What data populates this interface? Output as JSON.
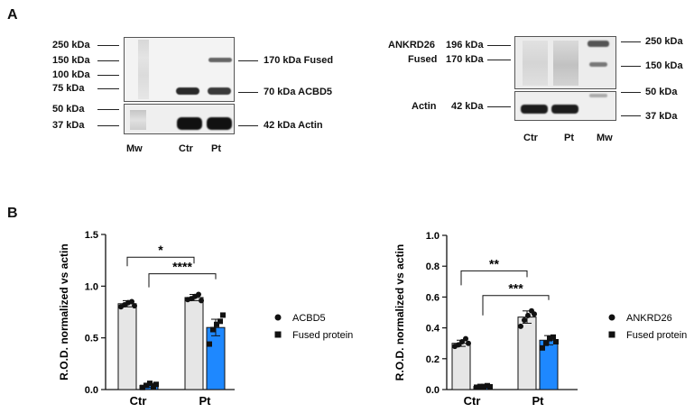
{
  "panels": {
    "a": "A",
    "b": "B"
  },
  "blot_left": {
    "mw_markers": [
      "250 kDa",
      "150 kDa",
      "100 kDa",
      "75 kDa",
      "50 kDa",
      "37 kDa"
    ],
    "right_labels": [
      "170 kDa  Fused",
      "70 kDa  ACBD5",
      "42 kDa  Actin"
    ],
    "lanes": [
      "Mw",
      "Ctr",
      "Pt"
    ]
  },
  "blot_right": {
    "left_labels": [
      {
        "name": "ANKRD26",
        "size": "196 kDa"
      },
      {
        "name": "Fused",
        "size": "170 kDa"
      },
      {
        "name": "Actin",
        "size": "42 kDa"
      }
    ],
    "mw_markers": [
      "250 kDa",
      "150 kDa",
      "50 kDa",
      "37 kDa"
    ],
    "lanes": [
      "Ctr",
      "Pt",
      "Mw"
    ]
  },
  "colors": {
    "control_bar": "#e6e6e6",
    "fused_bar": "#1e88ff",
    "dots": "#111111"
  },
  "chart_data": [
    {
      "type": "bar",
      "ylabel": "R.O.D. normalized vs actin",
      "categories": [
        "Ctr",
        "Pt"
      ],
      "ylim": [
        0,
        1.5
      ],
      "yticks": [
        "0.0",
        "0.5",
        "1.0",
        "1.5"
      ],
      "series": [
        {
          "name": "ACBD5",
          "values": [
            0.83,
            0.89
          ],
          "errors": [
            0.03,
            0.03
          ],
          "points": [
            [
              0.8,
              0.82,
              0.84,
              0.85,
              0.81
            ],
            [
              0.87,
              0.88,
              0.9,
              0.92,
              0.86
            ]
          ]
        },
        {
          "name": "Fused protein",
          "values": [
            0.04,
            0.6
          ],
          "errors": [
            0.02,
            0.08
          ],
          "points": [
            [
              0.02,
              0.04,
              0.06,
              0.03,
              0.05
            ],
            [
              0.44,
              0.58,
              0.63,
              0.66,
              0.72
            ]
          ]
        }
      ],
      "significance": [
        "*",
        "****"
      ],
      "legend": [
        "ACBD5",
        "Fused protein"
      ]
    },
    {
      "type": "bar",
      "ylabel": "R.O.D. normalized vs actin",
      "categories": [
        "Ctr",
        "Pt"
      ],
      "ylim": [
        0,
        1.0
      ],
      "yticks": [
        "0.0",
        "0.2",
        "0.4",
        "0.6",
        "0.8",
        "1.0"
      ],
      "series": [
        {
          "name": "ANKRD26",
          "values": [
            0.3,
            0.47
          ],
          "errors": [
            0.02,
            0.04
          ],
          "points": [
            [
              0.28,
              0.29,
              0.31,
              0.33,
              0.3
            ],
            [
              0.41,
              0.45,
              0.48,
              0.51,
              0.49
            ]
          ]
        },
        {
          "name": "Fused protein",
          "values": [
            0.02,
            0.32
          ],
          "errors": [
            0.005,
            0.03
          ],
          "points": [
            [
              0.015,
              0.02,
              0.02,
              0.025,
              0.018
            ],
            [
              0.27,
              0.3,
              0.33,
              0.34,
              0.31
            ]
          ]
        }
      ],
      "significance": [
        "**",
        "***"
      ],
      "legend": [
        "ANKRD26",
        "Fused protein"
      ]
    }
  ]
}
